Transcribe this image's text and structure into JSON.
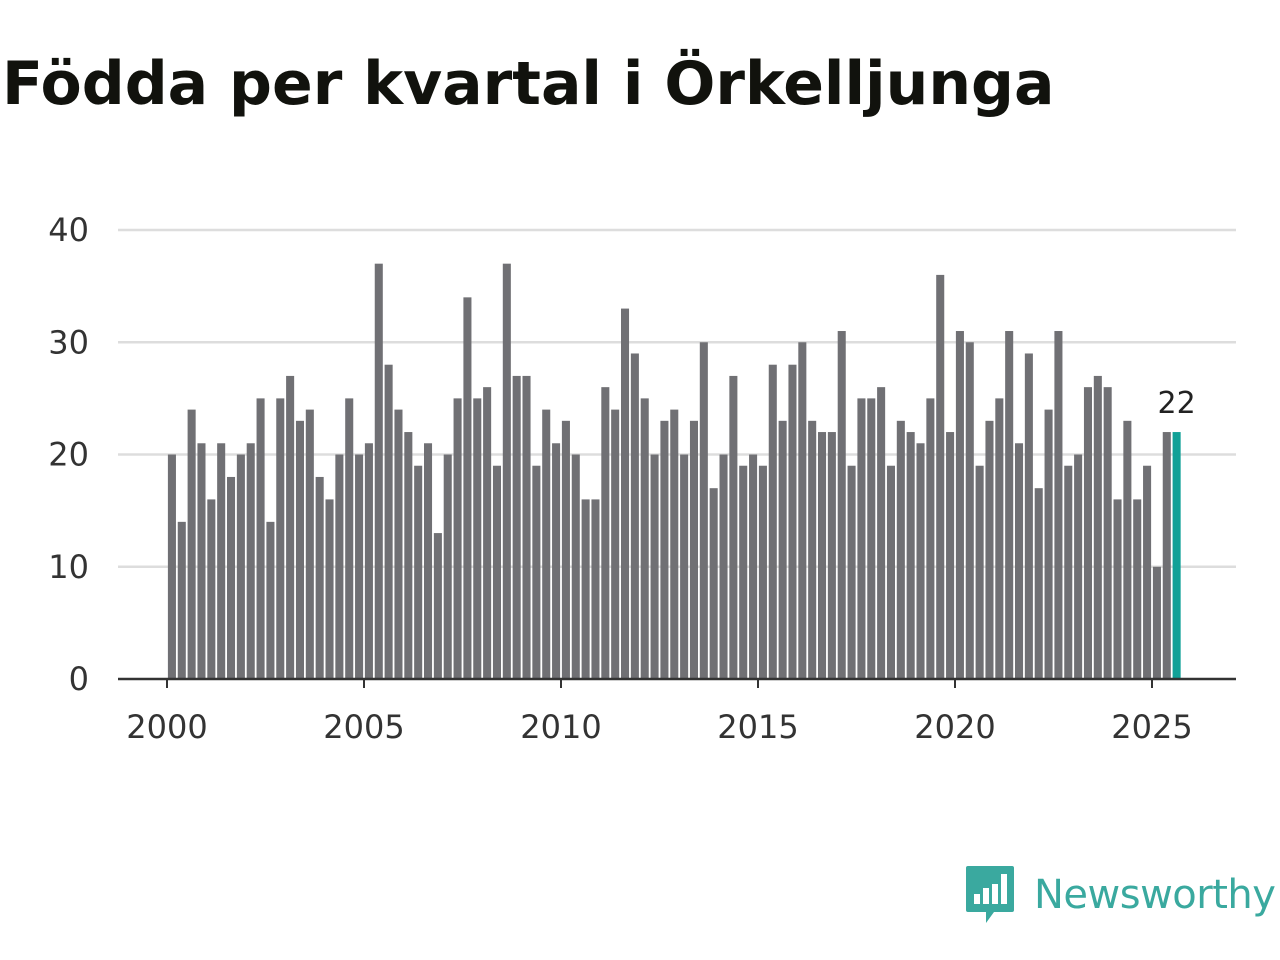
{
  "chart_data": {
    "type": "bar",
    "title": "Födda per kvartal i Örkelljunga",
    "xlabel": "",
    "ylabel": "",
    "x_start": 2000.0,
    "x_step": 0.25,
    "xlim": [
      1999,
      2027
    ],
    "ylim": [
      0,
      40
    ],
    "yticks": [
      0,
      10,
      20,
      30,
      40
    ],
    "xticks": [
      2000,
      2005,
      2010,
      2015,
      2020,
      2025
    ],
    "grid": true,
    "values": [
      20,
      14,
      24,
      21,
      16,
      21,
      18,
      20,
      21,
      25,
      14,
      25,
      27,
      23,
      24,
      18,
      16,
      20,
      25,
      20,
      21,
      37,
      28,
      24,
      22,
      19,
      21,
      13,
      20,
      25,
      34,
      25,
      26,
      19,
      37,
      27,
      27,
      19,
      24,
      21,
      23,
      20,
      16,
      16,
      26,
      24,
      33,
      29,
      25,
      20,
      23,
      24,
      20,
      23,
      30,
      17,
      20,
      27,
      19,
      20,
      19,
      28,
      23,
      28,
      30,
      23,
      22,
      22,
      31,
      19,
      25,
      25,
      26,
      19,
      23,
      22,
      21,
      25,
      36,
      22,
      31,
      30,
      19,
      23,
      25,
      31,
      21,
      29,
      17,
      24,
      31,
      19,
      20,
      26,
      27,
      26,
      16,
      23,
      16,
      19,
      10,
      22,
      22
    ],
    "bar_color": "#707074",
    "highlight_color": "#12a197",
    "highlight_label": "22"
  },
  "brand": {
    "name": "Newsworthy",
    "color": "#3aa99f"
  }
}
